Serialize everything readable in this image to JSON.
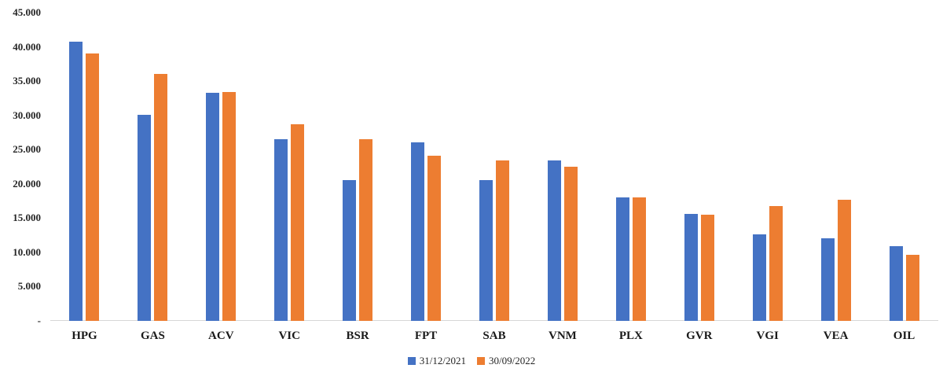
{
  "chart_data": {
    "type": "bar",
    "title": "",
    "xlabel": "",
    "ylabel": "",
    "ylim": [
      0,
      45000
    ],
    "grid": false,
    "legend_position": "bottom-center",
    "categories": [
      "HPG",
      "GAS",
      "ACV",
      "VIC",
      "BSR",
      "FPT",
      "SAB",
      "VNM",
      "PLX",
      "GVR",
      "VGI",
      "VEA",
      "OIL"
    ],
    "series": [
      {
        "name": "31/12/2021",
        "color": "#4472C4",
        "values": [
          40700,
          30100,
          33300,
          26500,
          20500,
          26100,
          20600,
          23400,
          18000,
          15600,
          12600,
          12000,
          10900
        ]
      },
      {
        "name": "30/09/2022",
        "color": "#ED7D31",
        "values": [
          39000,
          36000,
          33400,
          28700,
          26500,
          24100,
          23400,
          22500,
          18000,
          15500,
          16800,
          17700,
          9600
        ]
      }
    ],
    "y_ticks": [
      {
        "value": 45000,
        "label": "45.000"
      },
      {
        "value": 40000,
        "label": "40.000"
      },
      {
        "value": 35000,
        "label": "35.000"
      },
      {
        "value": 30000,
        "label": "30.000"
      },
      {
        "value": 25000,
        "label": "25.000"
      },
      {
        "value": 20000,
        "label": "20.000"
      },
      {
        "value": 15000,
        "label": "15.000"
      },
      {
        "value": 10000,
        "label": "10.000"
      },
      {
        "value": 5000,
        "label": "5.000"
      },
      {
        "value": 0,
        "label": "-"
      }
    ]
  },
  "legend": {
    "items": [
      {
        "label": "31/12/2021",
        "color": "#4472C4"
      },
      {
        "label": "30/09/2022",
        "color": "#ED7D31"
      }
    ]
  }
}
